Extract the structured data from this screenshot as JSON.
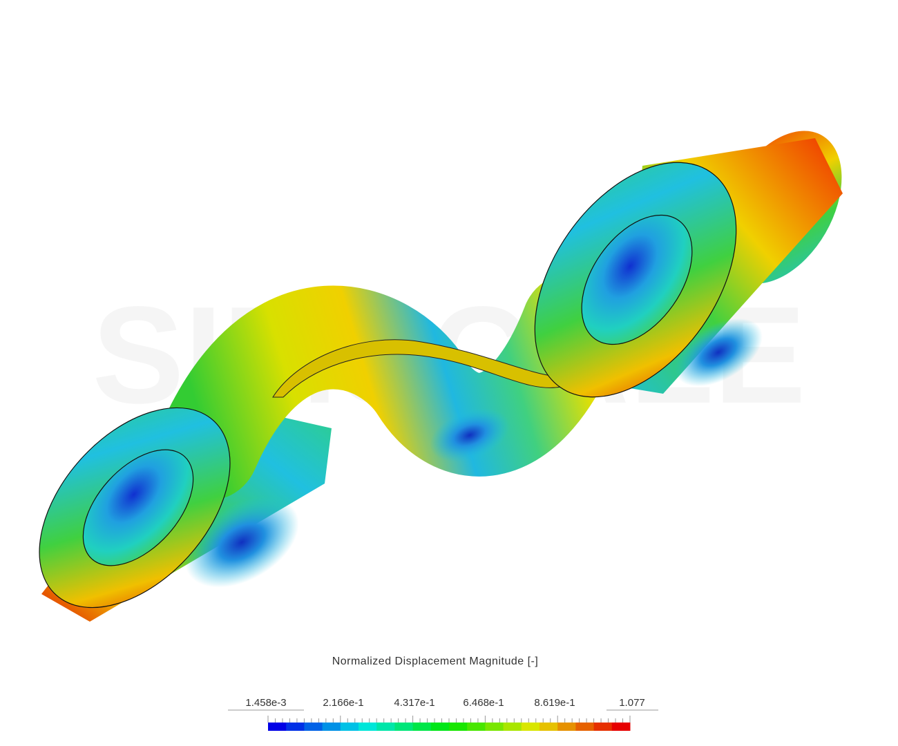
{
  "watermark": "SIMSCALE",
  "legend": {
    "title": "Normalized Displacement Magnitude [-]",
    "tick_labels": [
      "1.458e-3",
      "2.166e-1",
      "4.317e-1",
      "6.468e-1",
      "8.619e-1",
      "1.077"
    ]
  }
}
